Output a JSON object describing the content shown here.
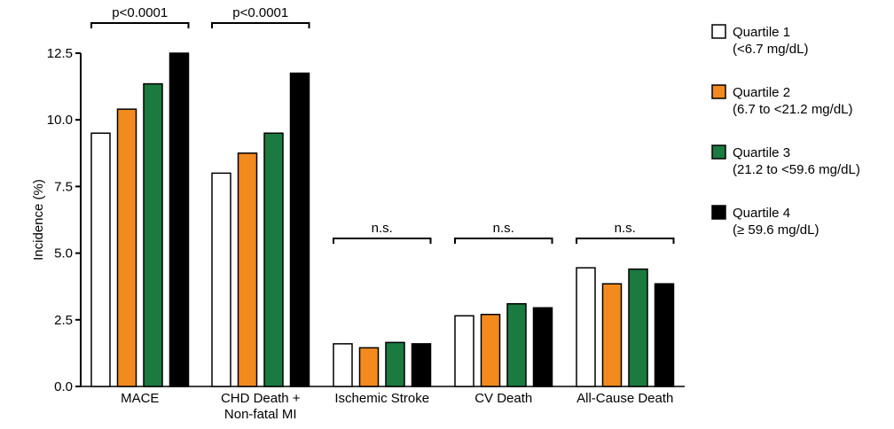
{
  "chart_data": {
    "type": "bar",
    "ylabel": "Incidence (%)",
    "ylim": [
      0,
      12.5
    ],
    "yticks": [
      "0.0",
      "2.5",
      "5.0",
      "7.5",
      "10.0",
      "12.5"
    ],
    "categories": [
      [
        "MACE"
      ],
      [
        "CHD Death +",
        "Non-fatal MI"
      ],
      [
        "Ischemic Stroke"
      ],
      [
        "CV Death"
      ],
      [
        "All-Cause Death"
      ]
    ],
    "series": [
      {
        "name": "Quartile 1",
        "range": "(<6.7 mg/dL)",
        "color": "#ffffff",
        "values": [
          9.5,
          8.0,
          1.6,
          2.65,
          4.45
        ]
      },
      {
        "name": "Quartile 2",
        "range": "(6.7 to <21.2 mg/dL)",
        "color": "#f28a1e",
        "values": [
          10.4,
          8.75,
          1.45,
          2.7,
          3.85
        ]
      },
      {
        "name": "Quartile 3",
        "range": "(21.2 to <59.6 mg/dL)",
        "color": "#1a7a3f",
        "values": [
          11.35,
          9.5,
          1.65,
          3.1,
          4.4
        ]
      },
      {
        "name": "Quartile 4",
        "range": "(≥ 59.6 mg/dL)",
        "color": "#000000",
        "values": [
          12.5,
          11.75,
          1.6,
          2.95,
          3.85
        ]
      }
    ],
    "significance": [
      "p<0.0001",
      "p<0.0001",
      "n.s.",
      "n.s.",
      "n.s."
    ],
    "legend_position": "right",
    "grid": false
  }
}
